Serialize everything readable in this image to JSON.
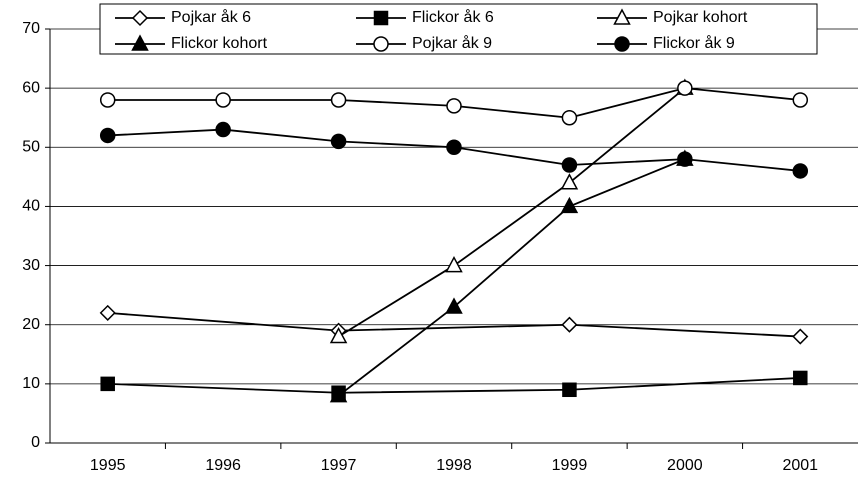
{
  "chart_data": {
    "type": "line",
    "xlim": [
      1994.5,
      2001.5
    ],
    "xticks": [
      1995,
      1996,
      1997,
      1998,
      1999,
      2000,
      2001
    ],
    "ylim": [
      0,
      70
    ],
    "yticks": [
      0,
      10,
      20,
      30,
      40,
      50,
      60,
      70
    ],
    "grid": true,
    "legend": "top",
    "series": [
      {
        "name": "Pojkar åk 6",
        "color": "#000000",
        "marker": "diamond",
        "filled": false,
        "x": [
          1995,
          1997,
          1999,
          2001
        ],
        "values": [
          22,
          19,
          20,
          18
        ]
      },
      {
        "name": "Flickor åk 6",
        "color": "#000000",
        "marker": "square",
        "filled": true,
        "x": [
          1995,
          1997,
          1999,
          2001
        ],
        "values": [
          10,
          8.5,
          9,
          11
        ]
      },
      {
        "name": "Pojkar kohort",
        "color": "#000000",
        "marker": "triangle",
        "filled": false,
        "x": [
          1997,
          1998,
          1999,
          2000
        ],
        "values": [
          18,
          30,
          44,
          60
        ]
      },
      {
        "name": "Flickor kohort",
        "color": "#000000",
        "marker": "triangle",
        "filled": true,
        "x": [
          1997,
          1998,
          1999,
          2000
        ],
        "values": [
          8,
          23,
          40,
          48
        ]
      },
      {
        "name": "Pojkar åk 9",
        "color": "#000000",
        "marker": "circle",
        "filled": false,
        "x": [
          1995,
          1996,
          1997,
          1998,
          1999,
          2000,
          2001
        ],
        "values": [
          58,
          58,
          58,
          57,
          55,
          60,
          58
        ]
      },
      {
        "name": "Flickor åk 9",
        "color": "#000000",
        "marker": "circle",
        "filled": true,
        "x": [
          1995,
          1996,
          1997,
          1998,
          1999,
          2000,
          2001
        ],
        "values": [
          52,
          53,
          51,
          50,
          47,
          48,
          46
        ]
      }
    ]
  }
}
